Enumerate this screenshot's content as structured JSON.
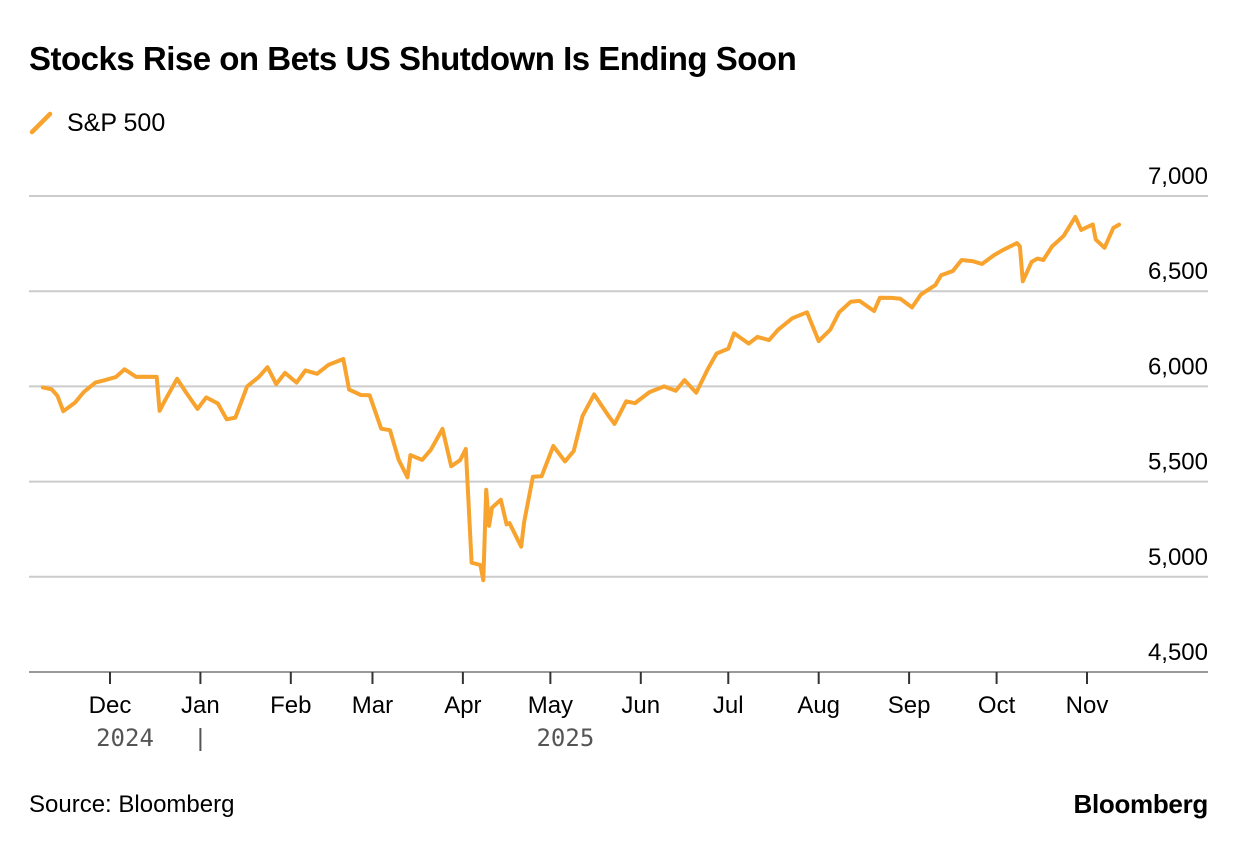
{
  "title": "Stocks Rise on Bets US Shutdown Is Ending Soon",
  "source": "Source: Bloomberg",
  "brand": "Bloomberg",
  "colors": {
    "series": "#f7a32e",
    "grid": "#cccccc",
    "axis": "#999999"
  },
  "chart_data": {
    "type": "line",
    "title": "Stocks Rise on Bets US Shutdown Is Ending Soon",
    "xlabel": "",
    "ylabel": "",
    "ylim": [
      4500,
      7000
    ],
    "yticks": [
      7000,
      6500,
      6000,
      5500,
      5000,
      4500
    ],
    "ytick_labels": [
      "7,000",
      "6,500",
      "6,000",
      "5,500",
      "5,000",
      "4,500"
    ],
    "grid": true,
    "legend_position": "top-left",
    "x_domain": [
      "2024-11-07",
      "2025-11-13"
    ],
    "x_ticks": [
      {
        "date": "2024-12-01",
        "label": "Dec"
      },
      {
        "date": "2025-01-01",
        "label": "Jan"
      },
      {
        "date": "2025-02-01",
        "label": "Feb"
      },
      {
        "date": "2025-03-01",
        "label": "Mar"
      },
      {
        "date": "2025-04-01",
        "label": "Apr"
      },
      {
        "date": "2025-05-01",
        "label": "May"
      },
      {
        "date": "2025-06-01",
        "label": "Jun"
      },
      {
        "date": "2025-07-01",
        "label": "Jul"
      },
      {
        "date": "2025-08-01",
        "label": "Aug"
      },
      {
        "date": "2025-09-01",
        "label": "Sep"
      },
      {
        "date": "2025-10-01",
        "label": "Oct"
      },
      {
        "date": "2025-11-01",
        "label": "Nov"
      }
    ],
    "year_labels": [
      {
        "label": "2024",
        "anchor": "2024-12-01"
      },
      {
        "label": "2025",
        "anchor": "2025-05-01"
      }
    ],
    "year_separator": "2025-01-01",
    "series": [
      {
        "name": "S&P 500",
        "x": [
          "2024-11-08",
          "2024-11-11",
          "2024-11-13",
          "2024-11-15",
          "2024-11-19",
          "2024-11-22",
          "2024-11-26",
          "2024-11-29",
          "2024-12-03",
          "2024-12-06",
          "2024-12-10",
          "2024-12-13",
          "2024-12-17",
          "2024-12-18",
          "2024-12-20",
          "2024-12-24",
          "2024-12-27",
          "2024-12-31",
          "2025-01-03",
          "2025-01-07",
          "2025-01-10",
          "2025-01-13",
          "2025-01-17",
          "2025-01-21",
          "2025-01-24",
          "2025-01-27",
          "2025-01-30",
          "2025-02-03",
          "2025-02-06",
          "2025-02-10",
          "2025-02-14",
          "2025-02-19",
          "2025-02-21",
          "2025-02-25",
          "2025-02-28",
          "2025-03-04",
          "2025-03-07",
          "2025-03-10",
          "2025-03-13",
          "2025-03-14",
          "2025-03-18",
          "2025-03-21",
          "2025-03-25",
          "2025-03-28",
          "2025-03-31",
          "2025-04-02",
          "2025-04-04",
          "2025-04-07",
          "2025-04-08",
          "2025-04-09",
          "2025-04-10",
          "2025-04-11",
          "2025-04-14",
          "2025-04-16",
          "2025-04-17",
          "2025-04-21",
          "2025-04-22",
          "2025-04-25",
          "2025-04-28",
          "2025-05-02",
          "2025-05-06",
          "2025-05-09",
          "2025-05-12",
          "2025-05-16",
          "2025-05-21",
          "2025-05-23",
          "2025-05-27",
          "2025-05-30",
          "2025-06-04",
          "2025-06-09",
          "2025-06-13",
          "2025-06-16",
          "2025-06-20",
          "2025-06-24",
          "2025-06-27",
          "2025-07-01",
          "2025-07-03",
          "2025-07-08",
          "2025-07-11",
          "2025-07-15",
          "2025-07-18",
          "2025-07-23",
          "2025-07-28",
          "2025-08-01",
          "2025-08-05",
          "2025-08-08",
          "2025-08-12",
          "2025-08-15",
          "2025-08-20",
          "2025-08-22",
          "2025-08-26",
          "2025-08-29",
          "2025-09-02",
          "2025-09-05",
          "2025-09-10",
          "2025-09-12",
          "2025-09-16",
          "2025-09-19",
          "2025-09-23",
          "2025-09-26",
          "2025-09-30",
          "2025-10-03",
          "2025-10-08",
          "2025-10-09",
          "2025-10-10",
          "2025-10-13",
          "2025-10-15",
          "2025-10-17",
          "2025-10-20",
          "2025-10-24",
          "2025-10-28",
          "2025-10-30",
          "2025-11-03",
          "2025-11-04",
          "2025-11-07",
          "2025-11-10",
          "2025-11-12"
        ],
        "y": [
          5995,
          5985,
          5950,
          5870,
          5915,
          5970,
          6020,
          6032,
          6049,
          6090,
          6050,
          6051,
          6050,
          5872,
          5930,
          6040,
          5970,
          5882,
          5942,
          5910,
          5827,
          5836,
          6000,
          6049,
          6101,
          6012,
          6071,
          6020,
          6084,
          6066,
          6114,
          6144,
          5983,
          5955,
          5954,
          5778,
          5770,
          5614,
          5522,
          5639,
          5614,
          5667,
          5777,
          5581,
          5612,
          5671,
          5074,
          5062,
          4982,
          5457,
          5268,
          5363,
          5405,
          5275,
          5282,
          5158,
          5287,
          5525,
          5528,
          5687,
          5606,
          5660,
          5844,
          5958,
          5844,
          5803,
          5922,
          5912,
          5970,
          6000,
          5977,
          6033,
          5967,
          6092,
          6173,
          6198,
          6279,
          6225,
          6260,
          6243,
          6297,
          6358,
          6389,
          6238,
          6299,
          6389,
          6445,
          6449,
          6396,
          6466,
          6465,
          6460,
          6415,
          6482,
          6532,
          6584,
          6606,
          6664,
          6657,
          6643,
          6688,
          6715,
          6753,
          6735,
          6552,
          6654,
          6671,
          6664,
          6735,
          6791,
          6890,
          6822,
          6851,
          6771,
          6728,
          6832,
          6850
        ]
      }
    ]
  }
}
